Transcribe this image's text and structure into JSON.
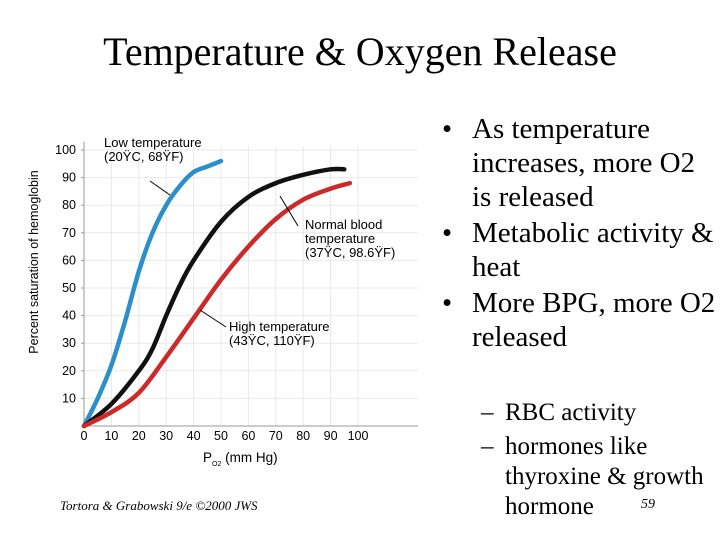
{
  "slide": {
    "title": "Temperature & Oxygen Release",
    "bullets": [
      "As temperature increases, more O2 is released",
      "Metabolic activity & heat",
      "More BPG, more O2 released"
    ],
    "sub_bullets": [
      "RBC activity",
      "hormones like thyroxine & growth hormone"
    ],
    "page_number": "59",
    "credit": "Tortora & Grabowski 9/e ©2000 JWS"
  },
  "colors": {
    "low": "#2b8fc9",
    "normal": "#111111",
    "high": "#cc2a2a",
    "text": "#000000",
    "background": "#ffffff"
  },
  "chart_data": {
    "type": "line",
    "title": "",
    "xlabel": "P",
    "xlabel_sub": "O2",
    "xlabel_suffix": " (mm Hg)",
    "ylabel": "Percent saturation of hemoglobin",
    "xlim": [
      0,
      120
    ],
    "ylim": [
      0,
      105
    ],
    "xticks": [
      0,
      10,
      20,
      30,
      40,
      50,
      60,
      70,
      80,
      90,
      100
    ],
    "yticks": [
      10,
      20,
      30,
      40,
      50,
      60,
      70,
      80,
      90,
      100
    ],
    "series": [
      {
        "name": "Low temperature",
        "key": "low",
        "annotation": [
          "Low temperature",
          "(20ŸC, 68ŸF)"
        ],
        "x": [
          0,
          5,
          10,
          15,
          20,
          25,
          30,
          35,
          40,
          45,
          50
        ],
        "y": [
          0,
          10,
          22,
          38,
          56,
          70,
          80,
          87,
          92,
          94,
          96
        ]
      },
      {
        "name": "Normal blood temperature",
        "key": "normal",
        "annotation": [
          "Normal blood",
          "temperature",
          "(37ŸC, 98.6ŸF)"
        ],
        "x": [
          0,
          10,
          20,
          25,
          30,
          35,
          40,
          50,
          60,
          70,
          80,
          90,
          95
        ],
        "y": [
          0,
          8,
          20,
          28,
          40,
          51,
          60,
          74,
          83,
          88,
          91,
          93,
          93
        ]
      },
      {
        "name": "High temperature",
        "key": "high",
        "annotation": [
          "High temperature",
          "(43ŸC, 110ŸF)"
        ],
        "x": [
          0,
          10,
          20,
          30,
          40,
          50,
          60,
          70,
          80,
          90,
          97
        ],
        "y": [
          0,
          5,
          12,
          25,
          39,
          53,
          65,
          75,
          82,
          86,
          88
        ]
      }
    ]
  }
}
